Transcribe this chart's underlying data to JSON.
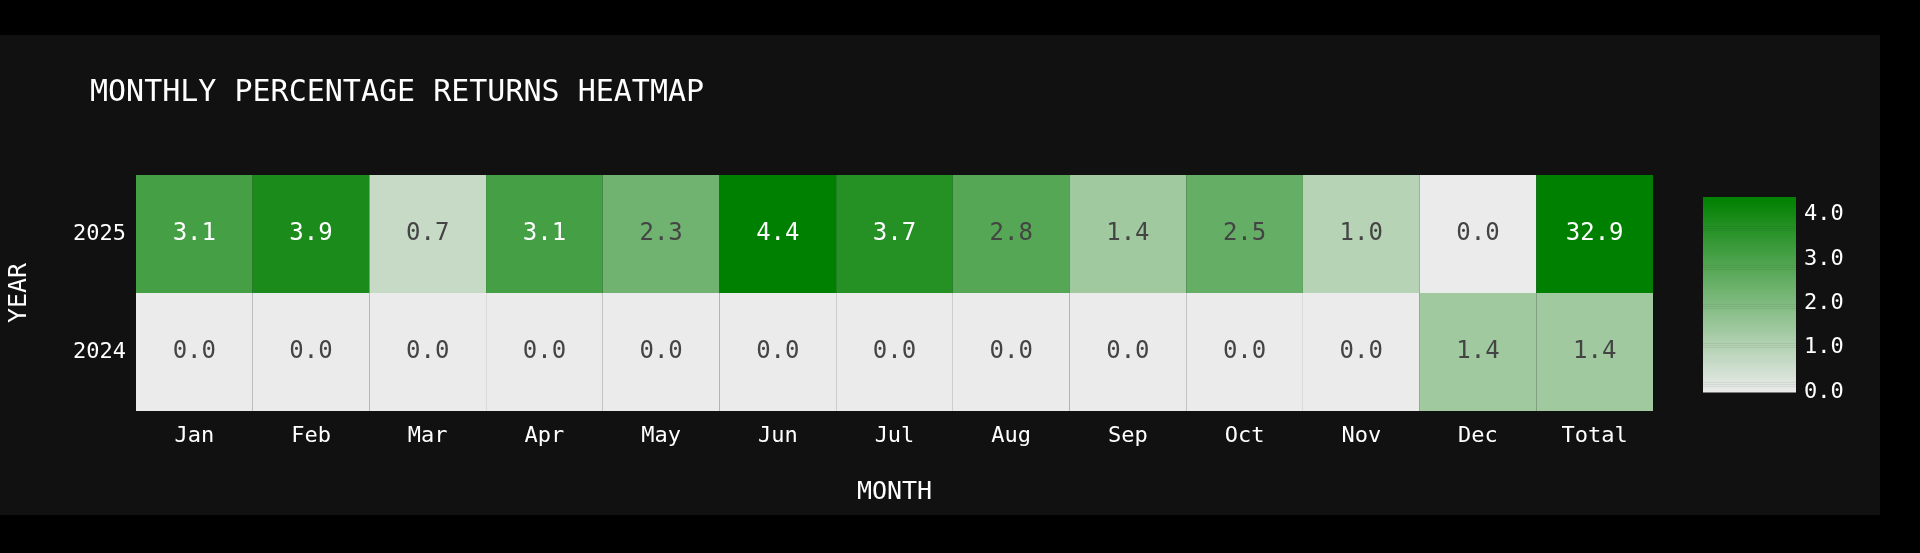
{
  "chart_data": {
    "type": "heatmap",
    "title": "MONTHLY PERCENTAGE RETURNS HEATMAP",
    "xlabel": "MONTH",
    "ylabel": "YEAR",
    "categories": [
      "Jan",
      "Feb",
      "Mar",
      "Apr",
      "May",
      "Jun",
      "Jul",
      "Aug",
      "Sep",
      "Oct",
      "Nov",
      "Dec",
      "Total"
    ],
    "y_categories": [
      "2025",
      "2024"
    ],
    "cells": [
      [
        3.1,
        3.9,
        0.7,
        3.1,
        2.3,
        4.4,
        3.7,
        2.8,
        1.4,
        2.5,
        1.0,
        0.0,
        32.9
      ],
      [
        0.0,
        0.0,
        0.0,
        0.0,
        0.0,
        0.0,
        0.0,
        0.0,
        0.0,
        0.0,
        0.0,
        1.4,
        1.4
      ]
    ],
    "cell_labels": [
      [
        "3.1",
        "3.9",
        "0.7",
        "3.1",
        "2.3",
        "4.4",
        "3.7",
        "2.8",
        "1.4",
        "2.5",
        "1.0",
        "0.0",
        "32.9"
      ],
      [
        "0.0",
        "0.0",
        "0.0",
        "0.0",
        "0.0",
        "0.0",
        "0.0",
        "0.0",
        "0.0",
        "0.0",
        "0.0",
        "1.4",
        "1.4"
      ]
    ],
    "clim": [
      0,
      4.4
    ],
    "cticks": [
      {
        "value": 0,
        "label": "0.0"
      },
      {
        "value": 1,
        "label": "1.0"
      },
      {
        "value": 2,
        "label": "2.0"
      },
      {
        "value": 3,
        "label": "3.0"
      },
      {
        "value": 4,
        "label": "4.0"
      }
    ]
  }
}
